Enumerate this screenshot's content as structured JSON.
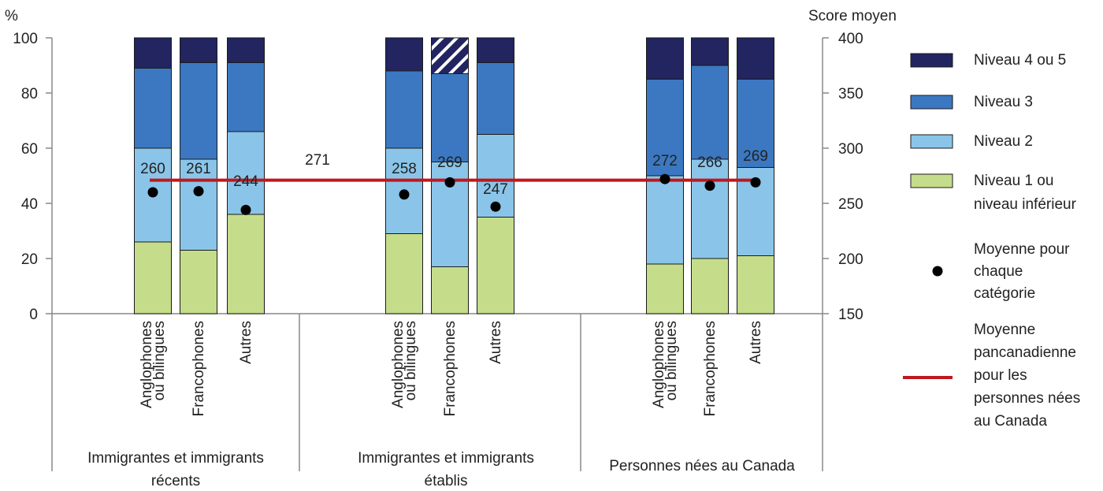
{
  "chart_data": {
    "type": "bar",
    "stacked": true,
    "left_axis": {
      "unit_label": "%",
      "ylim": [
        0,
        100
      ],
      "ticks": [
        "0",
        "20",
        "40",
        "60",
        "80",
        "100"
      ]
    },
    "right_axis": {
      "title": "Score moyen",
      "ylim": [
        150,
        400
      ],
      "ticks": [
        "150",
        "200",
        "250",
        "300",
        "350",
        "400"
      ]
    },
    "groups": [
      {
        "name_lines": [
          "Immigrantes et immigrants",
          "récents"
        ],
        "categories": [
          {
            "lines": [
              "Anglophones",
              "ou bilingues"
            ],
            "values": [
              26,
              34,
              29,
              11
            ],
            "mean": 260,
            "mean_label": "260"
          },
          {
            "lines": [
              "Francophones"
            ],
            "values": [
              23,
              33,
              35,
              9
            ],
            "mean": 261,
            "mean_label": "261"
          },
          {
            "lines": [
              "Autres"
            ],
            "values": [
              36,
              30,
              25,
              9
            ],
            "mean": 244,
            "mean_label": "244"
          }
        ]
      },
      {
        "name_lines": [
          "Immigrantes et immigrants",
          "établis"
        ],
        "categories": [
          {
            "lines": [
              "Anglophones",
              "ou bilingues"
            ],
            "values": [
              29,
              31,
              28,
              12
            ],
            "mean": 258,
            "mean_label": "258"
          },
          {
            "lines": [
              "Francophones"
            ],
            "values": [
              17,
              38,
              32,
              13
            ],
            "mean": 269,
            "mean_label": "269",
            "hatched_level_4_5": true
          },
          {
            "lines": [
              "Autres"
            ],
            "values": [
              35,
              30,
              26,
              9
            ],
            "mean": 247,
            "mean_label": "247"
          }
        ]
      },
      {
        "name_lines": [
          "Personnes nées au Canada"
        ],
        "categories": [
          {
            "lines": [
              "Anglophones",
              "ou bilingues"
            ],
            "values": [
              18,
              32,
              35,
              15
            ],
            "mean": 272,
            "mean_label": "272"
          },
          {
            "lines": [
              "Francophones"
            ],
            "values": [
              20,
              36,
              34,
              10
            ],
            "mean": 266,
            "mean_label": "266"
          },
          {
            "lines": [
              "Autres"
            ],
            "values": [
              21,
              32,
              32,
              15
            ],
            "mean": 269,
            "mean_label": "269"
          }
        ]
      }
    ],
    "series": [
      {
        "name": "Niveau 1 ou niveau inférieur",
        "name_lines": [
          "Niveau 1 ou",
          "niveau inférieur"
        ],
        "color": "#c5dd8b"
      },
      {
        "name": "Niveau 2",
        "name_lines": [
          "Niveau 2"
        ],
        "color": "#8ac5e9"
      },
      {
        "name": "Niveau 3",
        "name_lines": [
          "Niveau 3"
        ],
        "color": "#3b78c1"
      },
      {
        "name": "Niveau 4 ou 5",
        "name_lines": [
          "Niveau 4 ou 5"
        ],
        "color": "#222560"
      }
    ],
    "reference_line": {
      "value": 271,
      "label": "271",
      "color": "#c0171c",
      "legend_lines": [
        "Moyenne",
        "pancanadienne",
        "pour les",
        "personnes nées",
        "au Canada"
      ]
    },
    "mean_marker": {
      "legend_lines": [
        "Moyenne pour",
        "chaque",
        "catégorie"
      ],
      "color": "#000000"
    },
    "legend_order": [
      3,
      2,
      1,
      0
    ],
    "legend_position": "right"
  }
}
